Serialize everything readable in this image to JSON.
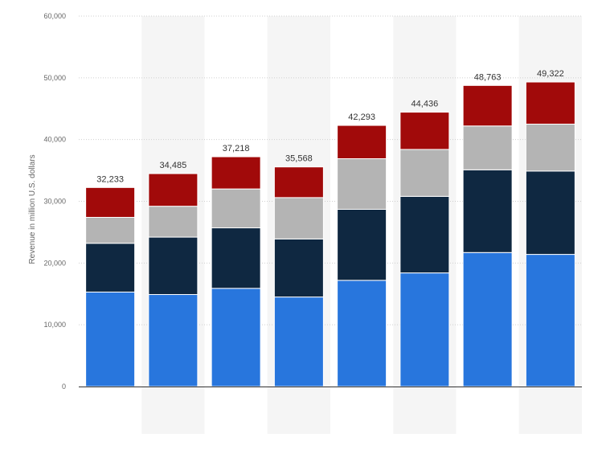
{
  "chart_data": {
    "type": "bar",
    "stacked": true,
    "categories": [
      "",
      "",
      "",
      "",
      "",
      "",
      "",
      ""
    ],
    "series": [
      {
        "color": "#2876dd",
        "values": [
          15300,
          14900,
          15900,
          14500,
          17200,
          18400,
          21700,
          21400
        ]
      },
      {
        "color": "#0f2841",
        "values": [
          7900,
          9300,
          9800,
          9400,
          11500,
          12400,
          13400,
          13500
        ]
      },
      {
        "color": "#b4b4b4",
        "values": [
          4200,
          5000,
          6300,
          6700,
          8200,
          7600,
          7100,
          7600
        ]
      },
      {
        "color": "#a10a0a",
        "values": [
          4833,
          5285,
          5218,
          4968,
          5393,
          6036,
          6563,
          6822
        ]
      }
    ],
    "totals": [
      "32,233",
      "34,485",
      "37,218",
      "35,568",
      "42,293",
      "44,436",
      "48,763",
      "49,322"
    ],
    "ylabel": "Revenue in million U.S. dollars",
    "ylim": [
      0,
      60000
    ],
    "yticks": [
      0,
      10000,
      20000,
      30000,
      40000,
      50000,
      60000
    ],
    "ytick_labels": [
      "0",
      "10,000",
      "20,000",
      "30,000",
      "40,000",
      "50,000",
      "60,000"
    ],
    "grid": true,
    "legend": "none"
  }
}
